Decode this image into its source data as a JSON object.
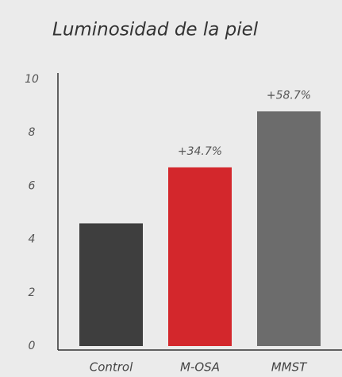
{
  "chart_data": {
    "type": "bar",
    "title": "Luminosidad de la piel",
    "categories": [
      "Control",
      "M-OSA",
      "MMST"
    ],
    "values": [
      4.6,
      6.7,
      8.8
    ],
    "colors": [
      "#3e3e3e",
      "#d3272c",
      "#6c6c6c"
    ],
    "annotations": [
      {
        "category": 1,
        "text": "+34.7%"
      },
      {
        "category": 2,
        "text": "+58.7%"
      }
    ],
    "ylim": [
      0,
      10
    ],
    "yticks": [
      0,
      2,
      4,
      6,
      8,
      10
    ],
    "grid": false
  }
}
